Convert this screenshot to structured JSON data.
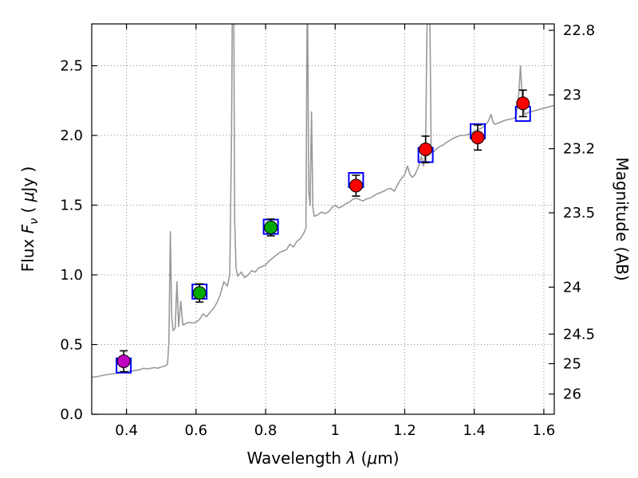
{
  "figure": {
    "background": "#ffffff"
  },
  "chart_data": {
    "type": "line",
    "title": "",
    "xlabel": "Wavelength λ (μm)",
    "ylabel": "Flux Fν ( μJy )",
    "ylabel_right": "Magnitude (AB)",
    "xlabel_parts": [
      {
        "t": "Wavelength  "
      },
      {
        "t": "λ",
        "i": true
      },
      {
        "t": " ("
      },
      {
        "t": "μ",
        "i": true
      },
      {
        "t": "m)"
      }
    ],
    "ylabel_left_parts": [
      {
        "t": "Flux  "
      },
      {
        "t": "F",
        "i": true
      },
      {
        "t": "ν",
        "i": true,
        "sub": true
      },
      {
        "t": "  ( "
      },
      {
        "t": "μ",
        "i": true
      },
      {
        "t": "Jy )"
      }
    ],
    "xlim": [
      0.3,
      1.63
    ],
    "ylim": [
      0.0,
      2.8
    ],
    "grid": true,
    "grid_style": "dotted",
    "xticks": {
      "values": [
        0.4,
        0.6,
        0.8,
        1.0,
        1.2,
        1.4,
        1.6
      ],
      "labels": [
        "0.4",
        "0.6",
        "0.8",
        "1",
        "1.2",
        "1.4",
        "1.6"
      ]
    },
    "yticks_left": {
      "values": [
        0.0,
        0.5,
        1.0,
        1.5,
        2.0,
        2.5
      ],
      "labels": [
        "0.0",
        "0.5",
        "1.0",
        "1.5",
        "2.0",
        "2.5"
      ]
    },
    "yticks_right": [
      {
        "label": "22.8",
        "flux": 2.754
      },
      {
        "label": "23",
        "flux": 2.291
      },
      {
        "label": "23.2",
        "flux": 1.905
      },
      {
        "label": "23.5",
        "flux": 1.445
      },
      {
        "label": "24",
        "flux": 0.912
      },
      {
        "label": "24.5",
        "flux": 0.575
      },
      {
        "label": "25",
        "flux": 0.363
      },
      {
        "label": "26",
        "flux": 0.145
      }
    ],
    "series": [
      {
        "name": "model-spectrum",
        "kind": "line",
        "color": "#999999",
        "linewidth": 1.6,
        "points": [
          [
            0.3,
            0.265
          ],
          [
            0.315,
            0.27
          ],
          [
            0.33,
            0.278
          ],
          [
            0.345,
            0.285
          ],
          [
            0.36,
            0.29
          ],
          [
            0.375,
            0.295
          ],
          [
            0.39,
            0.3
          ],
          [
            0.405,
            0.308
          ],
          [
            0.42,
            0.312
          ],
          [
            0.435,
            0.318
          ],
          [
            0.45,
            0.33
          ],
          [
            0.46,
            0.325
          ],
          [
            0.47,
            0.33
          ],
          [
            0.48,
            0.335
          ],
          [
            0.49,
            0.33
          ],
          [
            0.5,
            0.34
          ],
          [
            0.51,
            0.345
          ],
          [
            0.518,
            0.36
          ],
          [
            0.522,
            0.52
          ],
          [
            0.526,
            1.31
          ],
          [
            0.53,
            0.7
          ],
          [
            0.534,
            0.6
          ],
          [
            0.54,
            0.62
          ],
          [
            0.545,
            0.95
          ],
          [
            0.55,
            0.63
          ],
          [
            0.556,
            0.81
          ],
          [
            0.562,
            0.64
          ],
          [
            0.57,
            0.65
          ],
          [
            0.58,
            0.66
          ],
          [
            0.59,
            0.655
          ],
          [
            0.6,
            0.66
          ],
          [
            0.61,
            0.68
          ],
          [
            0.62,
            0.72
          ],
          [
            0.63,
            0.7
          ],
          [
            0.64,
            0.73
          ],
          [
            0.65,
            0.76
          ],
          [
            0.66,
            0.8
          ],
          [
            0.67,
            0.86
          ],
          [
            0.68,
            0.95
          ],
          [
            0.69,
            0.92
          ],
          [
            0.697,
            1.0
          ],
          [
            0.702,
            2.0
          ],
          [
            0.705,
            3.2
          ],
          [
            0.708,
            3.2
          ],
          [
            0.711,
            1.4
          ],
          [
            0.715,
            1.05
          ],
          [
            0.72,
            0.99
          ],
          [
            0.73,
            1.02
          ],
          [
            0.74,
            0.98
          ],
          [
            0.75,
            1.0
          ],
          [
            0.76,
            1.03
          ],
          [
            0.77,
            1.02
          ],
          [
            0.78,
            1.05
          ],
          [
            0.79,
            1.06
          ],
          [
            0.8,
            1.07
          ],
          [
            0.81,
            1.1
          ],
          [
            0.82,
            1.12
          ],
          [
            0.83,
            1.14
          ],
          [
            0.84,
            1.16
          ],
          [
            0.85,
            1.17
          ],
          [
            0.86,
            1.18
          ],
          [
            0.87,
            1.22
          ],
          [
            0.88,
            1.2
          ],
          [
            0.89,
            1.24
          ],
          [
            0.9,
            1.26
          ],
          [
            0.91,
            1.3
          ],
          [
            0.916,
            1.34
          ],
          [
            0.92,
            3.2
          ],
          [
            0.924,
            1.6
          ],
          [
            0.928,
            1.5
          ],
          [
            0.932,
            2.17
          ],
          [
            0.936,
            1.48
          ],
          [
            0.94,
            1.42
          ],
          [
            0.95,
            1.43
          ],
          [
            0.96,
            1.45
          ],
          [
            0.97,
            1.44
          ],
          [
            0.98,
            1.45
          ],
          [
            0.99,
            1.48
          ],
          [
            1.0,
            1.5
          ],
          [
            1.01,
            1.48
          ],
          [
            1.02,
            1.49
          ],
          [
            1.03,
            1.51
          ],
          [
            1.04,
            1.52
          ],
          [
            1.05,
            1.54
          ],
          [
            1.06,
            1.55
          ],
          [
            1.07,
            1.54
          ],
          [
            1.08,
            1.53
          ],
          [
            1.09,
            1.545
          ],
          [
            1.1,
            1.55
          ],
          [
            1.11,
            1.565
          ],
          [
            1.12,
            1.58
          ],
          [
            1.13,
            1.59
          ],
          [
            1.14,
            1.6
          ],
          [
            1.15,
            1.615
          ],
          [
            1.16,
            1.62
          ],
          [
            1.17,
            1.6
          ],
          [
            1.18,
            1.65
          ],
          [
            1.19,
            1.69
          ],
          [
            1.2,
            1.72
          ],
          [
            1.208,
            1.78
          ],
          [
            1.215,
            1.72
          ],
          [
            1.222,
            1.7
          ],
          [
            1.23,
            1.72
          ],
          [
            1.24,
            1.78
          ],
          [
            1.248,
            1.85
          ],
          [
            1.254,
            1.78
          ],
          [
            1.26,
            1.9
          ],
          [
            1.266,
            3.2
          ],
          [
            1.271,
            3.2
          ],
          [
            1.276,
            1.92
          ],
          [
            1.282,
            1.88
          ],
          [
            1.29,
            1.9
          ],
          [
            1.3,
            1.92
          ],
          [
            1.31,
            1.93
          ],
          [
            1.32,
            1.95
          ],
          [
            1.33,
            1.965
          ],
          [
            1.34,
            1.98
          ],
          [
            1.35,
            1.99
          ],
          [
            1.36,
            2.0
          ],
          [
            1.37,
            2.0
          ],
          [
            1.38,
            2.005
          ],
          [
            1.39,
            2.015
          ],
          [
            1.4,
            2.03
          ],
          [
            1.41,
            2.04
          ],
          [
            1.42,
            2.05
          ],
          [
            1.43,
            2.07
          ],
          [
            1.44,
            2.1
          ],
          [
            1.448,
            2.15
          ],
          [
            1.455,
            2.09
          ],
          [
            1.46,
            2.08
          ],
          [
            1.47,
            2.09
          ],
          [
            1.48,
            2.1
          ],
          [
            1.49,
            2.11
          ],
          [
            1.5,
            2.115
          ],
          [
            1.51,
            2.12
          ],
          [
            1.52,
            2.13
          ],
          [
            1.528,
            2.3
          ],
          [
            1.533,
            2.5
          ],
          [
            1.538,
            2.25
          ],
          [
            1.545,
            2.15
          ],
          [
            1.555,
            2.165
          ],
          [
            1.57,
            2.175
          ],
          [
            1.585,
            2.185
          ],
          [
            1.6,
            2.195
          ],
          [
            1.615,
            2.205
          ],
          [
            1.63,
            2.215
          ]
        ]
      },
      {
        "name": "model-photometry",
        "kind": "scatter-open-square",
        "color": "#0000ff",
        "marker_size": 18,
        "points": [
          {
            "x": 0.392,
            "y": 0.35
          },
          {
            "x": 0.61,
            "y": 0.88
          },
          {
            "x": 0.815,
            "y": 1.345
          },
          {
            "x": 1.06,
            "y": 1.68
          },
          {
            "x": 1.26,
            "y": 1.86
          },
          {
            "x": 1.41,
            "y": 2.03
          },
          {
            "x": 1.54,
            "y": 2.155
          }
        ]
      },
      {
        "name": "observed-photometry",
        "kind": "scatter-errorbar",
        "errorbar_color": "#000000",
        "marker_radius": 8,
        "points": [
          {
            "x": 0.392,
            "y": 0.38,
            "yerr": 0.075,
            "color": "#bf00bf"
          },
          {
            "x": 0.61,
            "y": 0.87,
            "yerr": 0.065,
            "color": "#00a800"
          },
          {
            "x": 0.815,
            "y": 1.34,
            "yerr": 0.06,
            "color": "#00a800"
          },
          {
            "x": 1.06,
            "y": 1.64,
            "yerr": 0.075,
            "color": "#ff0000"
          },
          {
            "x": 1.26,
            "y": 1.9,
            "yerr": 0.095,
            "color": "#ff0000"
          },
          {
            "x": 1.41,
            "y": 1.985,
            "yerr": 0.09,
            "color": "#ff0000"
          },
          {
            "x": 1.54,
            "y": 2.23,
            "yerr": 0.095,
            "color": "#ff0000"
          }
        ]
      }
    ],
    "colors": {
      "spectrum": "#999999",
      "model_square": "#0000ff",
      "errorbar": "#000000",
      "axis": "#000000"
    }
  }
}
